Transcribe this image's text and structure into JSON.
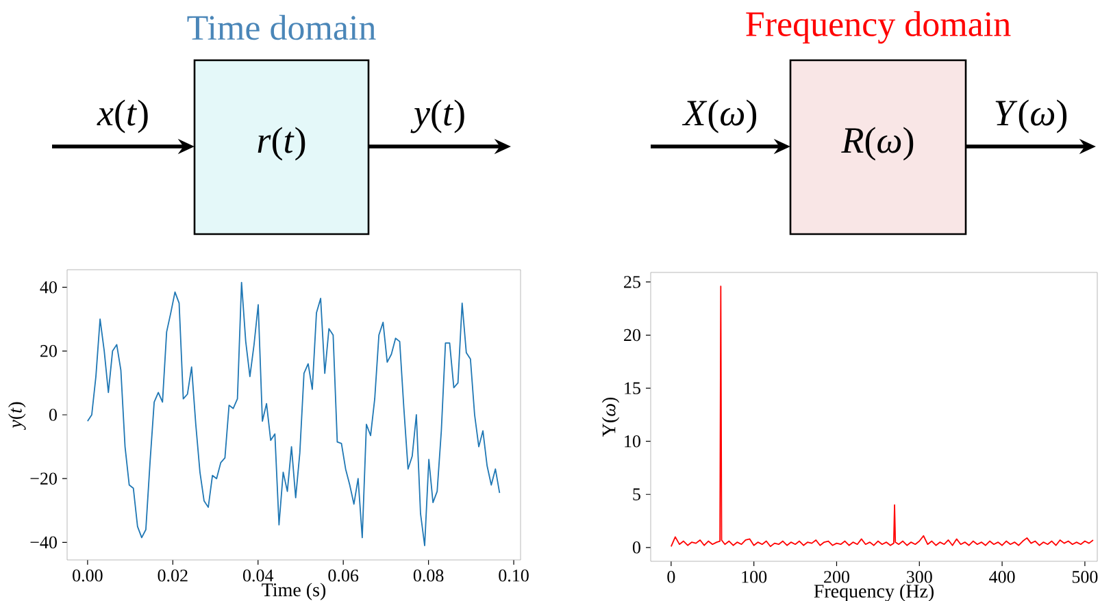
{
  "chart_data": [
    {
      "type": "other",
      "title": "Time domain",
      "color": "#e4f8f9",
      "annotations": [
        "*x*(*t*)",
        "*r*(*t*)",
        "*y*(*t*)"
      ]
    },
    {
      "type": "other",
      "title": "Frequency domain",
      "color": "#f9e6e6",
      "annotations": [
        "*X*(*ω*)",
        "*R*(*ω*)",
        "*Y*(*ω*)"
      ]
    },
    {
      "type": "line",
      "xlabel": "Time (s)",
      "ylabel": "*y*(*t*)",
      "xlim": [
        -0.0048,
        0.1016
      ],
      "ylim": [
        -45.5,
        45.5
      ],
      "xticks": [
        {
          "value": 0,
          "label": "0.00"
        },
        {
          "value": 0.02,
          "label": "0.02"
        },
        {
          "value": 0.04,
          "label": "0.04"
        },
        {
          "value": 0.06,
          "label": "0.06"
        },
        {
          "value": 0.08,
          "label": "0.08"
        },
        {
          "value": 0.1,
          "label": "0.10"
        }
      ],
      "yticks": [
        {
          "value": -40,
          "label": "−40"
        },
        {
          "value": -20,
          "label": "−20"
        },
        0,
        20,
        40
      ],
      "series": [
        {
          "color": "#1f77b4",
          "x": [
            0,
            0.00098,
            0.00195,
            0.00293,
            0.00391,
            0.00488,
            0.00586,
            0.00684,
            0.00781,
            0.00879,
            0.00977,
            0.01074,
            0.01172,
            0.0127,
            0.01367,
            0.01465,
            0.01563,
            0.0166,
            0.01758,
            0.01855,
            0.01953,
            0.02051,
            0.02148,
            0.02246,
            0.02344,
            0.02441,
            0.02539,
            0.02637,
            0.02734,
            0.02832,
            0.0293,
            0.03027,
            0.03125,
            0.03223,
            0.0332,
            0.03418,
            0.03516,
            0.03613,
            0.03711,
            0.03809,
            0.03906,
            0.04004,
            0.04102,
            0.04199,
            0.04297,
            0.04395,
            0.04492,
            0.0459,
            0.04688,
            0.04785,
            0.04883,
            0.0498,
            0.05078,
            0.05176,
            0.05273,
            0.05371,
            0.05469,
            0.05566,
            0.05664,
            0.05762,
            0.05859,
            0.05957,
            0.06055,
            0.06152,
            0.0625,
            0.06348,
            0.06445,
            0.06543,
            0.06641,
            0.06738,
            0.06836,
            0.06934,
            0.07031,
            0.07129,
            0.07227,
            0.07324,
            0.07422,
            0.0752,
            0.07617,
            0.07715,
            0.07813,
            0.0791,
            0.08008,
            0.08105,
            0.08203,
            0.08301,
            0.08398,
            0.08496,
            0.08594,
            0.08691,
            0.08789,
            0.08887,
            0.08984,
            0.09082,
            0.0918,
            0.09277,
            0.09375,
            0.09473,
            0.0957,
            0.09668
          ],
          "values": [
            -2,
            0,
            12,
            30,
            20,
            7,
            20,
            22,
            14,
            -10,
            -22,
            -23,
            -35,
            -38.5,
            -36,
            -15,
            4,
            7,
            4,
            26,
            32,
            38.5,
            35,
            5,
            6.5,
            15,
            -3,
            -18,
            -27,
            -29,
            -19,
            -20,
            -15,
            -13.5,
            3,
            2,
            5,
            41.5,
            23,
            12,
            22,
            34.5,
            -2,
            3.5,
            -8,
            -6,
            -34.5,
            -18,
            -24,
            -10,
            -26,
            -12,
            13,
            16,
            8,
            32,
            36.5,
            13,
            27,
            25,
            -8.5,
            -9,
            -17,
            -22,
            -28,
            -20,
            -38.5,
            -3,
            -6.5,
            5,
            25,
            29,
            16.5,
            19,
            24,
            23,
            2,
            -17,
            -13,
            0,
            -31,
            -41,
            -14,
            -27.5,
            -24,
            -5,
            22.5,
            22.5,
            8.5,
            10,
            35,
            19.5,
            17.5,
            0,
            -10,
            -5,
            -16,
            -22,
            -17,
            -24.5
          ]
        }
      ]
    },
    {
      "type": "line",
      "xlabel": "Frequency (Hz)",
      "ylabel": "Y(*ω*)",
      "xlim": [
        -24.7,
        515
      ],
      "ylim": [
        -1.3,
        25.9
      ],
      "xticks": [
        0,
        100,
        200,
        300,
        400,
        500
      ],
      "yticks": [
        0,
        5,
        10,
        15,
        20,
        25
      ],
      "series": [
        {
          "color": "#ff0000",
          "x": [
            0,
            5,
            10,
            15,
            20,
            25,
            30,
            35,
            40,
            45,
            50,
            55,
            59,
            60,
            61,
            65,
            70,
            75,
            80,
            85,
            90,
            95,
            100,
            105,
            110,
            115,
            120,
            125,
            130,
            135,
            140,
            145,
            150,
            155,
            160,
            165,
            170,
            175,
            180,
            185,
            190,
            195,
            200,
            205,
            210,
            215,
            220,
            225,
            230,
            235,
            240,
            245,
            250,
            255,
            260,
            265,
            269,
            270,
            271,
            275,
            280,
            285,
            290,
            295,
            300,
            305,
            310,
            315,
            320,
            325,
            330,
            335,
            340,
            345,
            350,
            355,
            360,
            365,
            370,
            375,
            380,
            385,
            390,
            395,
            400,
            405,
            410,
            415,
            420,
            425,
            430,
            435,
            440,
            445,
            450,
            455,
            460,
            465,
            470,
            475,
            480,
            485,
            490,
            495,
            500,
            505,
            510
          ],
          "values": [
            0.1,
            1.0,
            0.3,
            0.6,
            0.2,
            0.5,
            0.4,
            0.7,
            0.2,
            0.6,
            0.3,
            0.5,
            0.6,
            24.6,
            0.7,
            0.3,
            0.6,
            0.2,
            0.5,
            0.3,
            0.7,
            0.8,
            0.2,
            0.5,
            0.3,
            0.6,
            0.1,
            0.4,
            0.3,
            0.6,
            0.2,
            0.5,
            0.3,
            0.6,
            0.2,
            0.5,
            0.4,
            0.7,
            0.2,
            0.5,
            0.6,
            0.2,
            0.4,
            0.3,
            0.6,
            0.2,
            0.5,
            0.3,
            0.8,
            0.3,
            0.5,
            0.2,
            0.6,
            0.3,
            0.5,
            0.2,
            0.4,
            4.0,
            0.5,
            0.3,
            0.6,
            0.2,
            0.5,
            0.3,
            0.6,
            1.1,
            0.3,
            0.6,
            0.2,
            0.5,
            0.3,
            0.7,
            0.2,
            0.8,
            0.3,
            0.5,
            0.2,
            0.6,
            0.3,
            0.5,
            0.2,
            0.6,
            0.3,
            0.5,
            0.2,
            0.6,
            0.3,
            0.5,
            0.2,
            0.6,
            0.9,
            0.4,
            0.6,
            0.2,
            0.5,
            0.3,
            0.6,
            0.2,
            0.7,
            0.4,
            0.6,
            0.3,
            0.5,
            0.3,
            0.6,
            0.4,
            0.7
          ]
        }
      ]
    }
  ]
}
